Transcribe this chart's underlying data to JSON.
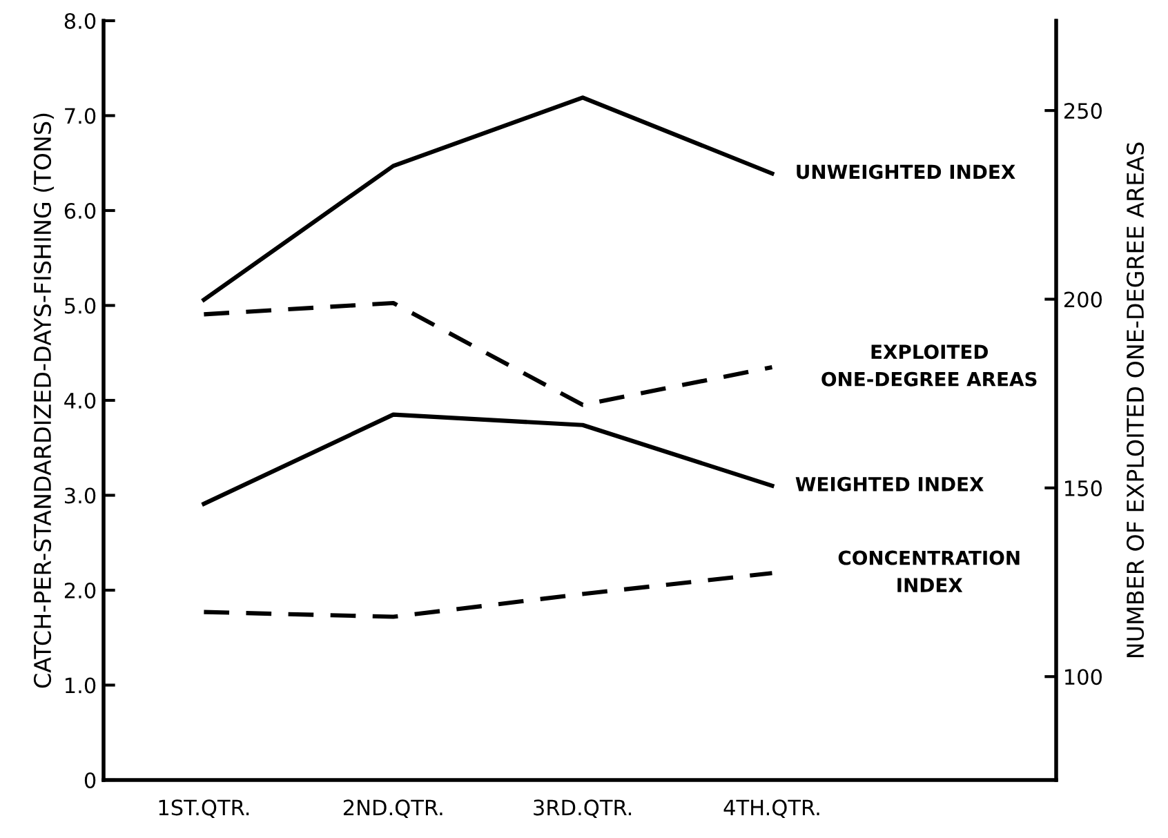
{
  "chart_data": {
    "type": "line",
    "ylabel": "CATCH-PER-STANDARDIZED-DAYS-FISHING (TONS)",
    "y2label": "NUMBER OF EXPLOITED ONE-DEGREE AREAS",
    "categories": [
      "1ST.QTR.",
      "2ND.QTR.",
      "3RD.QTR.",
      "4TH.QTR."
    ],
    "series": [
      {
        "name": "UNWEIGHTED INDEX",
        "color": "#000000",
        "line_style": "solid",
        "values": [
          5.06,
          6.47,
          7.19,
          6.39
        ]
      },
      {
        "name": "EXPLOITED\nONE-DEGREE AREAS",
        "color": "#000000",
        "line_style": "dashed",
        "axis": "y2",
        "values": [
          196,
          199,
          172,
          182
        ]
      },
      {
        "name": "WEIGHTED INDEX",
        "color": "#000000",
        "line_style": "solid",
        "values": [
          2.91,
          3.85,
          3.74,
          3.1
        ]
      },
      {
        "name": "CONCENTRATION\nINDEX",
        "color": "#000000",
        "line_style": "dashed",
        "values": [
          1.77,
          1.72,
          1.96,
          2.18
        ]
      }
    ],
    "ylim": [
      0,
      8.0
    ],
    "yticks": [
      {
        "value": 0,
        "label": "0"
      },
      {
        "value": 1,
        "label": "1.0"
      },
      {
        "value": 2,
        "label": "2.0"
      },
      {
        "value": 3,
        "label": "3.0"
      },
      {
        "value": 4,
        "label": "4.0"
      },
      {
        "value": 5,
        "label": "5.0"
      },
      {
        "value": 6,
        "label": "6.0"
      },
      {
        "value": 7,
        "label": "7.0"
      },
      {
        "value": 8,
        "label": "8.0"
      }
    ],
    "y2lim": [
      72.6,
      273.8
    ],
    "y2ticks": [
      100,
      150,
      200,
      250
    ],
    "grid": false,
    "legend": false,
    "marker": "none"
  }
}
